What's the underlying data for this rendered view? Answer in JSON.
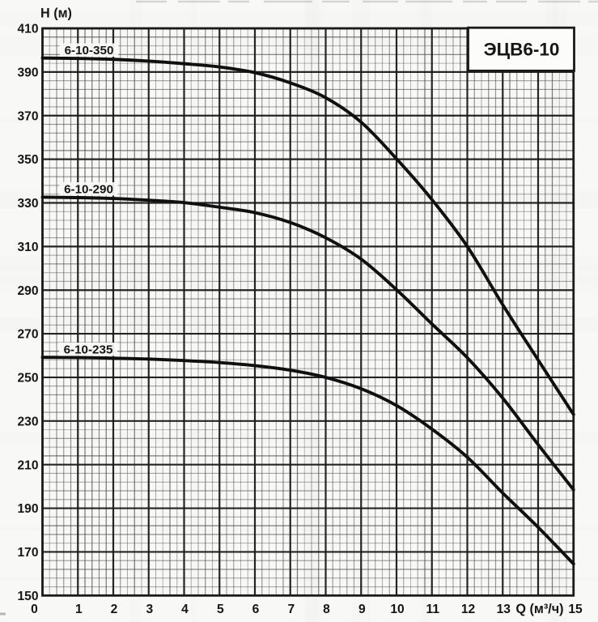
{
  "title": "ЭЦВ6-10",
  "chart_data": {
    "type": "line",
    "title": "ЭЦВ6-10",
    "xlabel": "Q (м³/ч)",
    "ylabel": "H (м)",
    "xlim": [
      0,
      15
    ],
    "ylim": [
      150,
      410
    ],
    "x_major_step": 1,
    "y_major_step": 20,
    "x_minor_per_major": 5,
    "y_minor_per_major": 5,
    "grid": "millimeter-paper",
    "legend_position": "inline-curve-labels",
    "x": [
      0,
      1,
      2,
      3,
      4,
      5,
      6,
      7,
      8,
      9,
      10,
      11,
      12,
      13,
      14,
      15
    ],
    "series": [
      {
        "name": "6-10-350",
        "values": [
          396.4,
          396.2,
          395.8,
          395.0,
          393.8,
          392.3,
          389.7,
          385.0,
          378.2,
          367.0,
          350.2,
          331.5,
          310.0,
          283.3,
          258.0,
          233.0
        ]
      },
      {
        "name": "6-10-290",
        "values": [
          332.6,
          332.4,
          332.0,
          331.2,
          330.1,
          328.0,
          325.5,
          321.0,
          314.0,
          304.2,
          290.2,
          274.5,
          259.0,
          240.5,
          219.2,
          198.5
        ]
      },
      {
        "name": "6-10-235",
        "values": [
          259.2,
          259.1,
          258.8,
          258.4,
          257.7,
          256.8,
          255.4,
          253.3,
          250.0,
          244.8,
          237.1,
          226.3,
          213.4,
          197.0,
          181.3,
          164.5
        ]
      }
    ],
    "y_tick_labels": [
      "410",
      "390",
      "370",
      "350",
      "330",
      "310",
      "290",
      "270",
      "250",
      "230",
      "210",
      "190",
      "170",
      "150"
    ],
    "x_tick_labels": [
      "0",
      "1",
      "2",
      "3",
      "4",
      "5",
      "6",
      "7",
      "8",
      "9",
      "10",
      "11",
      "12",
      "13",
      "15"
    ]
  },
  "colors": {
    "ink": "#161616",
    "curve": "#101010",
    "grid_minor": "#454545",
    "grid_major": "#1a1a1a",
    "paper": "#f8f8f6",
    "box_fill": "#fcfcfb"
  }
}
